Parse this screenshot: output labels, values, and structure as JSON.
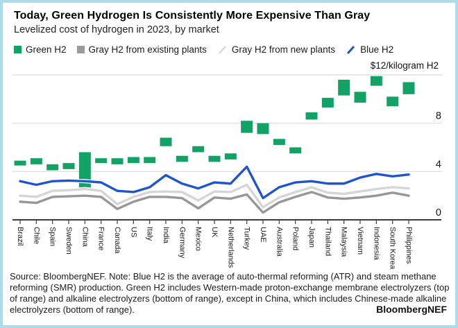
{
  "header": {
    "title": "Today, Green Hydrogen Is Consistently More Expensive Than Gray",
    "subtitle": "Levelized cost of hydrogen in 2023, by market"
  },
  "legend": [
    {
      "label": "Green H2",
      "marker": "square",
      "color": "#12a266"
    },
    {
      "label": "Gray H2 from existing plants",
      "marker": "square",
      "color": "#9b9b9b"
    },
    {
      "label": "Gray H2 from new plants",
      "marker": "slash",
      "color": "#d5d5d5"
    },
    {
      "label": "Blue H2",
      "marker": "slash",
      "color": "#1e55cc"
    }
  ],
  "chart_data": {
    "type": "bar",
    "subtype": "floating-range-bars-with-lines",
    "title": "Levelized cost of hydrogen in 2023, by market",
    "unit_label": "$12/kilogram H2",
    "ylim": [
      0,
      12
    ],
    "yticks": [
      0,
      4,
      8
    ],
    "grid": true,
    "legend_position": "top",
    "categories": [
      "Brazil",
      "Chile",
      "Spain",
      "Sweden",
      "China",
      "France",
      "Canada",
      "US",
      "Italy",
      "India",
      "Germany",
      "Mexico",
      "UK",
      "Netherlands",
      "Turkey",
      "UAE",
      "Australia",
      "Poland",
      "Japan",
      "Thailand",
      "Malaysia",
      "Vietnam",
      "Indonesia",
      "South Korea",
      "Philippines"
    ],
    "series": [
      {
        "name": "Green H2",
        "type": "range_bar",
        "color": "#12a266",
        "low": [
          4.5,
          4.6,
          4.1,
          4.2,
          2.5,
          4.7,
          4.6,
          4.7,
          4.7,
          6.1,
          4.8,
          5.6,
          4.8,
          5.0,
          7.2,
          7.1,
          6.2,
          5.5,
          8.3,
          9.3,
          10.3,
          9.7,
          11.1,
          9.4,
          10.4
        ],
        "high": [
          4.9,
          5.1,
          4.6,
          4.7,
          5.6,
          5.1,
          5.1,
          5.2,
          5.2,
          6.8,
          5.3,
          6.1,
          5.3,
          5.5,
          8.2,
          8.0,
          6.7,
          6.0,
          8.9,
          10.1,
          11.6,
          10.6,
          11.9,
          10.2,
          11.4
        ]
      },
      {
        "name": "Gray H2 from existing plants",
        "type": "line",
        "color": "#979797",
        "values": [
          1.5,
          1.4,
          1.9,
          1.95,
          2.0,
          1.9,
          0.9,
          1.5,
          1.9,
          1.9,
          1.8,
          0.95,
          1.85,
          1.75,
          2.1,
          0.6,
          1.45,
          1.9,
          2.3,
          1.85,
          1.75,
          1.85,
          2.0,
          2.25,
          2.0
        ]
      },
      {
        "name": "Gray H2 from new plants",
        "type": "line",
        "color": "#d5d5d5",
        "values": [
          2.0,
          1.9,
          2.4,
          2.45,
          2.55,
          2.4,
          1.3,
          1.9,
          2.3,
          2.35,
          2.3,
          1.6,
          2.35,
          2.3,
          2.9,
          1.05,
          1.85,
          2.3,
          2.7,
          2.25,
          2.15,
          2.35,
          2.55,
          2.7,
          2.6
        ]
      },
      {
        "name": "Blue H2",
        "type": "line",
        "color": "#1e55cc",
        "values": [
          3.2,
          2.9,
          3.2,
          3.25,
          3.2,
          3.1,
          2.4,
          2.3,
          2.7,
          3.7,
          3.0,
          2.6,
          3.1,
          3.0,
          4.4,
          1.8,
          2.7,
          3.1,
          3.2,
          3.0,
          3.0,
          3.5,
          3.8,
          3.6,
          3.75
        ]
      }
    ]
  },
  "footer": {
    "source_note": "Source: BloombergNEF. Note: Blue H2 is the average of auto-thermal reforming (ATR) and steam methane reforming (SMR) production. Green H2 includes Western-made proton-exchange membrane electrolyzers (top of range) and alkaline electrolyzers (bottom of range), except in China, which includes Chinese-made alkaline electrolyzers (bottom of range).",
    "brand": "BloombergNEF"
  },
  "colors": {
    "frame": "#aadcec",
    "gridline": "#d9d9d9",
    "axis": "#3c3c3c",
    "tick_label": "#1a1a1a"
  }
}
